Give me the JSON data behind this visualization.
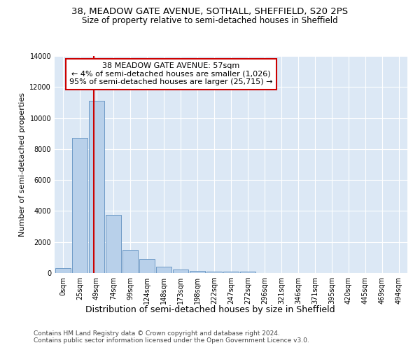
{
  "title_line1": "38, MEADOW GATE AVENUE, SOTHALL, SHEFFIELD, S20 2PS",
  "title_line2": "Size of property relative to semi-detached houses in Sheffield",
  "xlabel": "Distribution of semi-detached houses by size in Sheffield",
  "ylabel": "Number of semi-detached properties",
  "bar_labels": [
    "0sqm",
    "25sqm",
    "49sqm",
    "74sqm",
    "99sqm",
    "124sqm",
    "148sqm",
    "173sqm",
    "198sqm",
    "222sqm",
    "247sqm",
    "272sqm",
    "296sqm",
    "321sqm",
    "346sqm",
    "371sqm",
    "395sqm",
    "420sqm",
    "445sqm",
    "469sqm",
    "494sqm"
  ],
  "bar_values": [
    310,
    8700,
    11100,
    3750,
    1500,
    900,
    420,
    240,
    130,
    100,
    100,
    80,
    0,
    0,
    0,
    0,
    0,
    0,
    0,
    0,
    0
  ],
  "bar_color": "#b8d0ea",
  "bar_edge_color": "#6090c0",
  "annotation_title": "38 MEADOW GATE AVENUE: 57sqm",
  "annotation_line2": "← 4% of semi-detached houses are smaller (1,026)",
  "annotation_line3": "95% of semi-detached houses are larger (25,715) →",
  "vline_color": "#cc0000",
  "vline_x_bar_pos": 1.82,
  "ylim": [
    0,
    14000
  ],
  "yticks": [
    0,
    2000,
    4000,
    6000,
    8000,
    10000,
    12000,
    14000
  ],
  "background_color": "#dce8f5",
  "footer_line1": "Contains HM Land Registry data © Crown copyright and database right 2024.",
  "footer_line2": "Contains public sector information licensed under the Open Government Licence v3.0.",
  "title_fontsize": 9.5,
  "subtitle_fontsize": 8.5,
  "xlabel_fontsize": 9,
  "ylabel_fontsize": 8,
  "tick_fontsize": 7,
  "annotation_fontsize": 8,
  "footer_fontsize": 6.5
}
